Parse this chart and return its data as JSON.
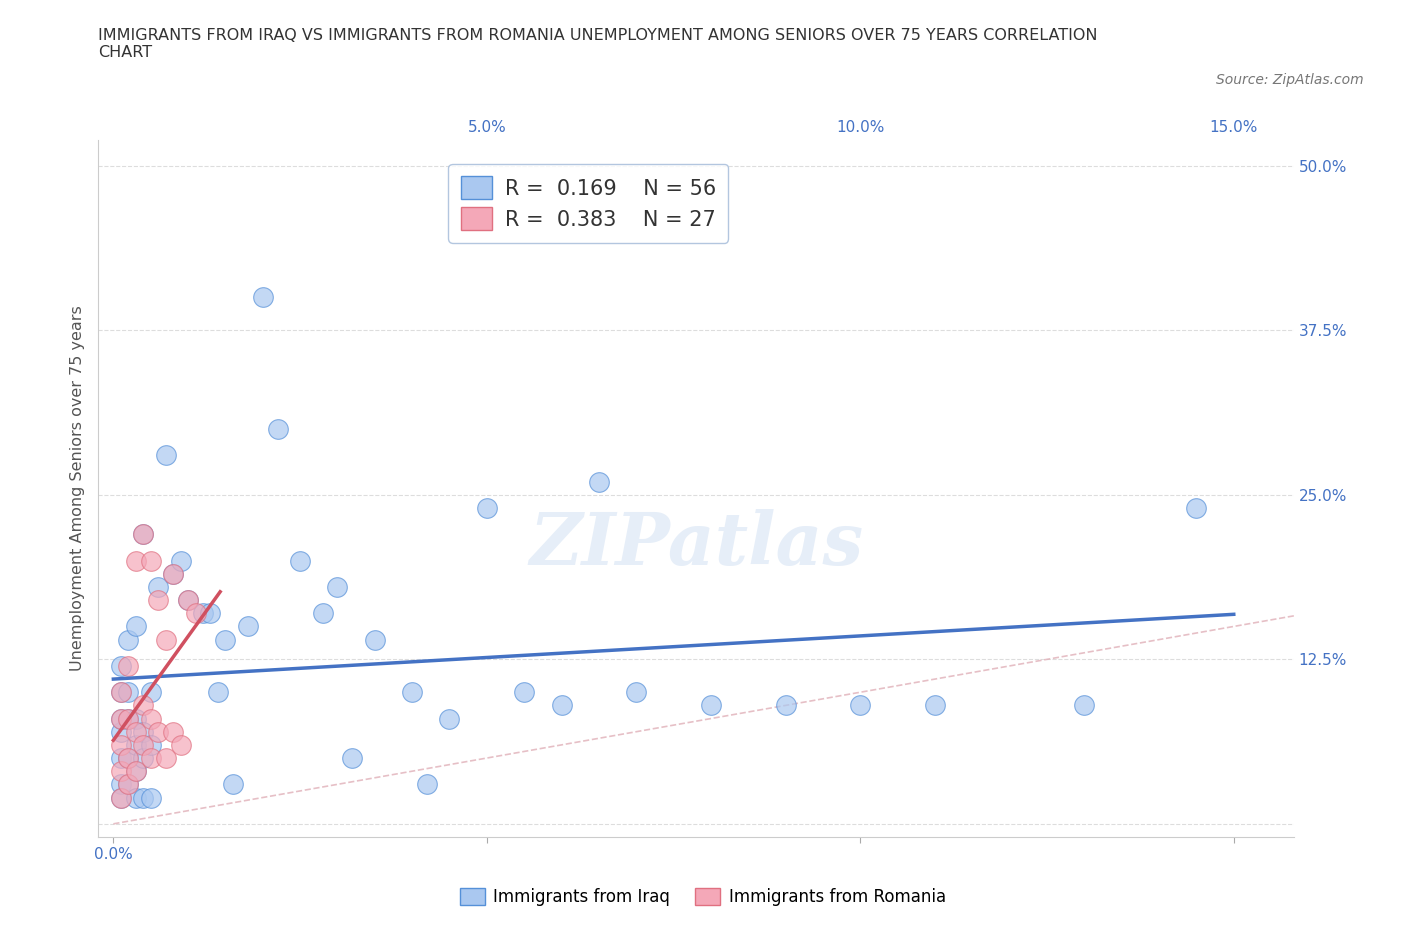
{
  "title": "IMMIGRANTS FROM IRAQ VS IMMIGRANTS FROM ROMANIA UNEMPLOYMENT AMONG SENIORS OVER 75 YEARS CORRELATION\nCHART",
  "source": "Source: ZipAtlas.com",
  "ylabel": "Unemployment Among Seniors over 75 years",
  "x_ticks": [
    0.0,
    0.05,
    0.1,
    0.15
  ],
  "x_tick_labels": [
    "0.0%",
    "",
    "",
    ""
  ],
  "x_tick_labels_right": [
    "",
    "5.0%",
    "10.0%",
    "15.0%"
  ],
  "y_ticks": [
    0.0,
    0.125,
    0.25,
    0.375,
    0.5
  ],
  "y_tick_labels_right": [
    "",
    "12.5%",
    "25.0%",
    "37.5%",
    "50.0%"
  ],
  "xlim": [
    -0.002,
    0.158
  ],
  "ylim": [
    -0.01,
    0.52
  ],
  "iraq_R": 0.169,
  "iraq_N": 56,
  "romania_R": 0.383,
  "romania_N": 27,
  "iraq_color": "#aac8f0",
  "romania_color": "#f4a8b8",
  "iraq_line_color": "#4472c4",
  "romania_line_color": "#d05060",
  "iraq_edge_color": "#5590d8",
  "romania_edge_color": "#e07080",
  "watermark": "ZIPatlas",
  "iraq_x": [
    0.001,
    0.001,
    0.001,
    0.001,
    0.001,
    0.001,
    0.001,
    0.002,
    0.002,
    0.002,
    0.002,
    0.002,
    0.003,
    0.003,
    0.003,
    0.003,
    0.003,
    0.004,
    0.004,
    0.004,
    0.004,
    0.005,
    0.005,
    0.005,
    0.006,
    0.007,
    0.008,
    0.009,
    0.01,
    0.012,
    0.013,
    0.014,
    0.015,
    0.016,
    0.018,
    0.02,
    0.022,
    0.025,
    0.028,
    0.03,
    0.032,
    0.035,
    0.04,
    0.042,
    0.045,
    0.05,
    0.055,
    0.06,
    0.065,
    0.07,
    0.08,
    0.09,
    0.1,
    0.11,
    0.13,
    0.145
  ],
  "iraq_y": [
    0.03,
    0.05,
    0.07,
    0.08,
    0.1,
    0.12,
    0.02,
    0.03,
    0.05,
    0.08,
    0.1,
    0.14,
    0.04,
    0.06,
    0.08,
    0.02,
    0.15,
    0.05,
    0.07,
    0.22,
    0.02,
    0.06,
    0.1,
    0.02,
    0.18,
    0.28,
    0.19,
    0.2,
    0.17,
    0.16,
    0.16,
    0.1,
    0.14,
    0.03,
    0.15,
    0.4,
    0.3,
    0.2,
    0.16,
    0.18,
    0.05,
    0.14,
    0.1,
    0.03,
    0.08,
    0.24,
    0.1,
    0.09,
    0.26,
    0.1,
    0.09,
    0.09,
    0.09,
    0.09,
    0.09,
    0.24
  ],
  "romania_x": [
    0.001,
    0.001,
    0.001,
    0.001,
    0.001,
    0.002,
    0.002,
    0.002,
    0.002,
    0.003,
    0.003,
    0.003,
    0.004,
    0.004,
    0.004,
    0.005,
    0.005,
    0.005,
    0.006,
    0.006,
    0.007,
    0.007,
    0.008,
    0.008,
    0.009,
    0.01,
    0.011
  ],
  "romania_y": [
    0.02,
    0.04,
    0.06,
    0.08,
    0.1,
    0.03,
    0.05,
    0.08,
    0.12,
    0.04,
    0.07,
    0.2,
    0.06,
    0.09,
    0.22,
    0.05,
    0.08,
    0.2,
    0.07,
    0.17,
    0.05,
    0.14,
    0.07,
    0.19,
    0.06,
    0.17,
    0.16
  ]
}
